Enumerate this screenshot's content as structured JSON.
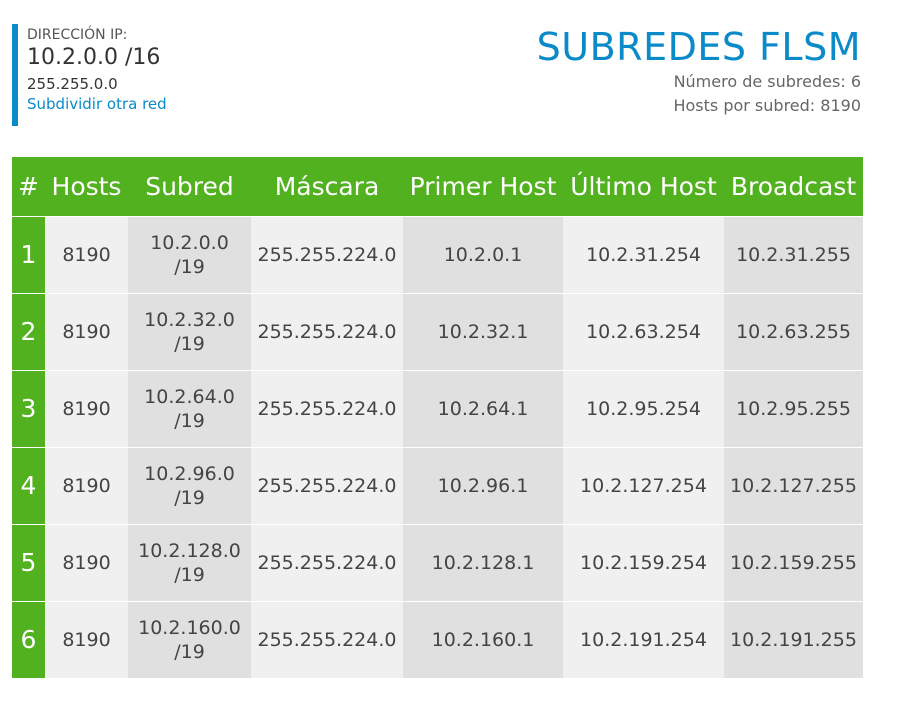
{
  "header": {
    "ip_label": "DIRECCIÓN IP:",
    "ip_value": "10.2.0.0 /16",
    "mask": "255.255.0.0",
    "link": "Subdividir otra red",
    "title": "SUBREDES FLSM",
    "subnet_count_label": "Número de subredes:",
    "subnet_count": "6",
    "hosts_label": "Hosts por subred:",
    "hosts": "8190"
  },
  "colors": {
    "accent_blue": "#0a8ac8",
    "header_green": "#52b11f"
  },
  "table": {
    "columns": [
      "#",
      "Hosts",
      "Subred",
      "Máscara",
      "Primer Host",
      "Último Host",
      "Broadcast"
    ],
    "rows": [
      {
        "num": "1",
        "hosts": "8190",
        "subnet": "10.2.0.0",
        "prefix": "/19",
        "mask": "255.255.224.0",
        "first": "10.2.0.1",
        "last": "10.2.31.254",
        "broadcast": "10.2.31.255"
      },
      {
        "num": "2",
        "hosts": "8190",
        "subnet": "10.2.32.0",
        "prefix": "/19",
        "mask": "255.255.224.0",
        "first": "10.2.32.1",
        "last": "10.2.63.254",
        "broadcast": "10.2.63.255"
      },
      {
        "num": "3",
        "hosts": "8190",
        "subnet": "10.2.64.0",
        "prefix": "/19",
        "mask": "255.255.224.0",
        "first": "10.2.64.1",
        "last": "10.2.95.254",
        "broadcast": "10.2.95.255"
      },
      {
        "num": "4",
        "hosts": "8190",
        "subnet": "10.2.96.0",
        "prefix": "/19",
        "mask": "255.255.224.0",
        "first": "10.2.96.1",
        "last": "10.2.127.254",
        "broadcast": "10.2.127.255"
      },
      {
        "num": "5",
        "hosts": "8190",
        "subnet": "10.2.128.0",
        "prefix": "/19",
        "mask": "255.255.224.0",
        "first": "10.2.128.1",
        "last": "10.2.159.254",
        "broadcast": "10.2.159.255"
      },
      {
        "num": "6",
        "hosts": "8190",
        "subnet": "10.2.160.0",
        "prefix": "/19",
        "mask": "255.255.224.0",
        "first": "10.2.160.1",
        "last": "10.2.191.254",
        "broadcast": "10.2.191.255"
      }
    ]
  }
}
